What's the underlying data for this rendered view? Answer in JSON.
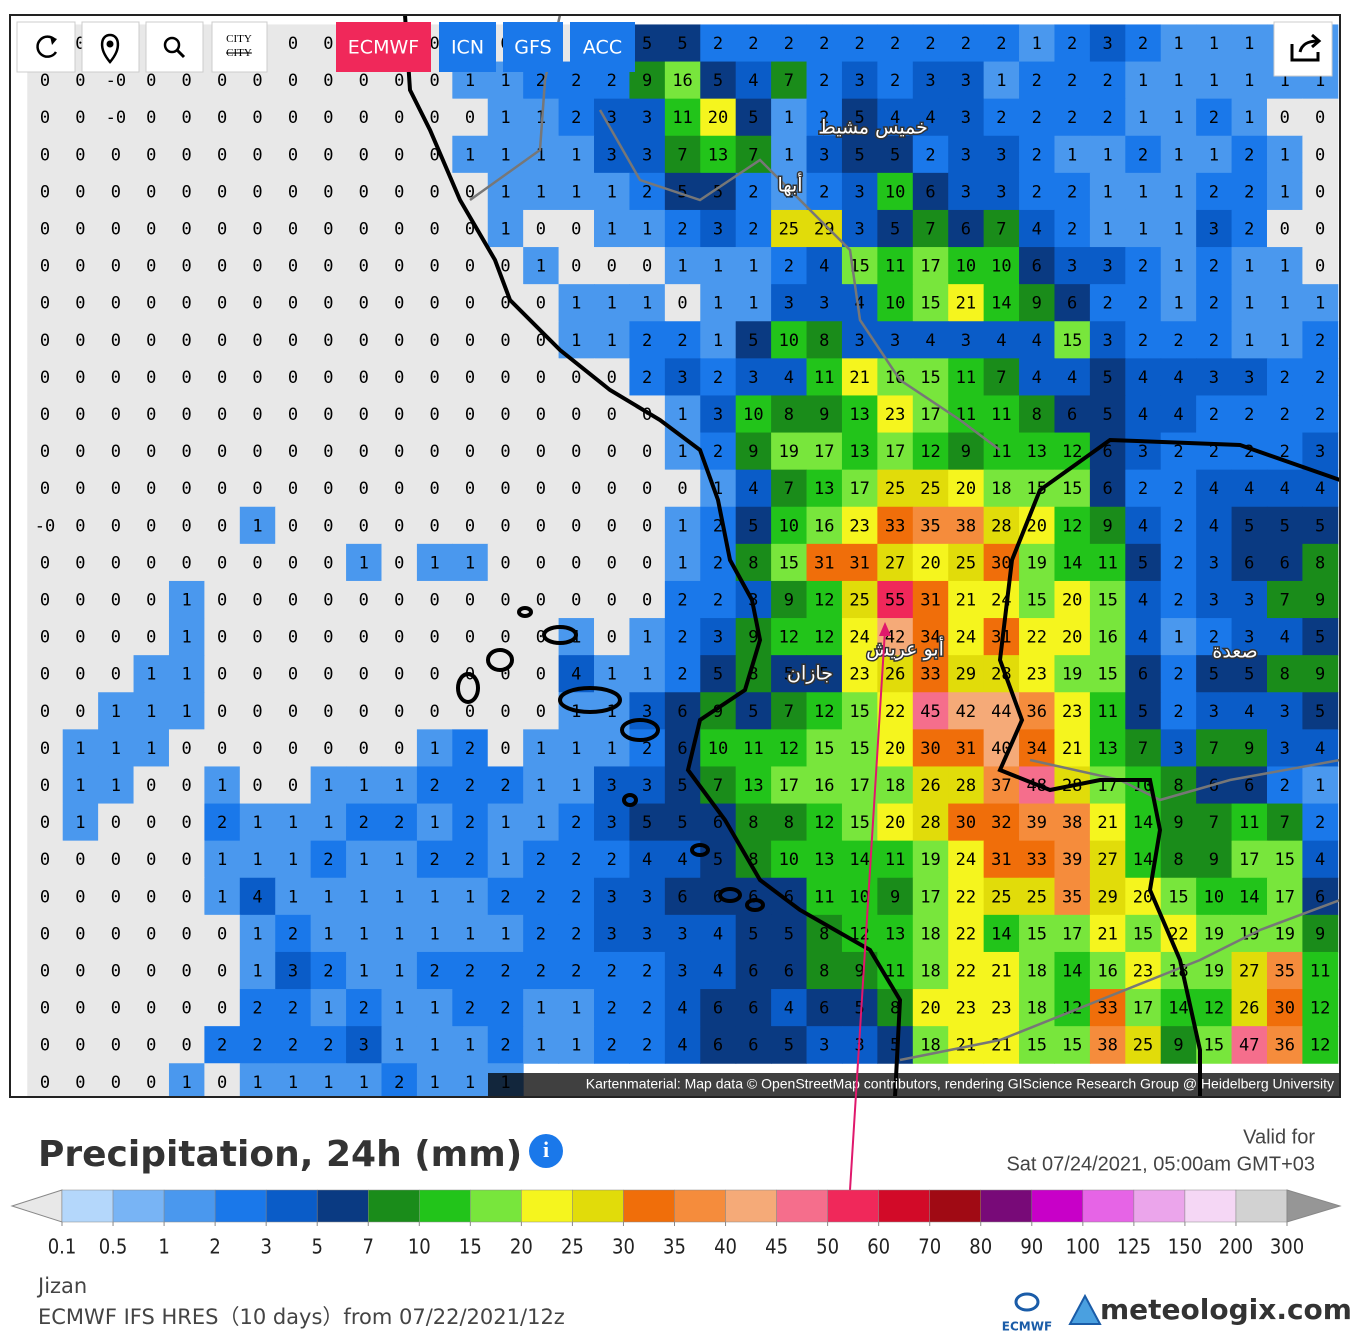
{
  "toolbar": {
    "models": [
      "ECMWF",
      "ICN",
      "GFS",
      "ACC"
    ],
    "city_icon": [
      "CITY",
      "CITY"
    ]
  },
  "map": {
    "grid": [
      [
        0,
        0,
        0,
        0,
        0,
        0,
        0,
        0,
        0,
        0,
        0,
        0,
        0,
        0,
        0,
        0,
        0,
        5,
        5,
        2,
        2,
        2,
        2,
        2,
        2,
        2,
        2,
        2,
        1,
        2,
        3,
        2,
        1,
        1,
        1,
        1,
        1
      ],
      [
        0,
        0,
        "-0",
        0,
        0,
        0,
        0,
        0,
        0,
        0,
        0,
        0,
        1,
        1,
        2,
        2,
        2,
        9,
        16,
        5,
        4,
        7,
        2,
        3,
        2,
        3,
        3,
        1,
        2,
        2,
        2,
        1,
        1,
        1,
        1,
        1,
        1
      ],
      [
        0,
        0,
        "-0",
        0,
        0,
        0,
        0,
        0,
        0,
        0,
        0,
        0,
        0,
        1,
        1,
        2,
        3,
        3,
        11,
        20,
        5,
        1,
        2,
        5,
        4,
        4,
        3,
        2,
        2,
        2,
        2,
        1,
        1,
        2,
        1,
        0,
        0
      ],
      [
        0,
        0,
        0,
        0,
        0,
        0,
        0,
        0,
        0,
        0,
        0,
        0,
        1,
        1,
        1,
        1,
        3,
        3,
        7,
        13,
        7,
        1,
        3,
        5,
        5,
        2,
        3,
        3,
        2,
        1,
        1,
        2,
        1,
        1,
        2,
        1,
        0
      ],
      [
        0,
        0,
        0,
        0,
        0,
        0,
        0,
        0,
        0,
        0,
        0,
        0,
        0,
        1,
        1,
        1,
        1,
        2,
        5,
        5,
        2,
        1,
        2,
        3,
        10,
        6,
        3,
        3,
        2,
        2,
        1,
        1,
        1,
        2,
        2,
        1,
        0
      ],
      [
        0,
        0,
        0,
        0,
        0,
        0,
        0,
        0,
        0,
        0,
        0,
        0,
        0,
        1,
        0,
        0,
        1,
        1,
        2,
        3,
        2,
        25,
        29,
        3,
        5,
        7,
        6,
        7,
        4,
        2,
        1,
        1,
        1,
        3,
        2,
        0,
        0
      ],
      [
        0,
        0,
        0,
        0,
        0,
        0,
        0,
        0,
        0,
        0,
        0,
        0,
        0,
        0,
        1,
        0,
        0,
        0,
        1,
        1,
        1,
        2,
        4,
        15,
        11,
        17,
        10,
        10,
        6,
        3,
        3,
        2,
        1,
        2,
        1,
        1,
        0
      ],
      [
        0,
        0,
        0,
        0,
        0,
        0,
        0,
        0,
        0,
        0,
        0,
        0,
        0,
        0,
        0,
        1,
        1,
        1,
        0,
        1,
        1,
        3,
        3,
        4,
        10,
        15,
        21,
        14,
        9,
        6,
        2,
        2,
        1,
        2,
        1,
        1,
        1
      ],
      [
        0,
        0,
        0,
        0,
        0,
        0,
        0,
        0,
        0,
        0,
        0,
        0,
        0,
        0,
        0,
        1,
        1,
        2,
        2,
        1,
        5,
        10,
        8,
        3,
        3,
        4,
        3,
        4,
        4,
        15,
        3,
        2,
        2,
        2,
        1,
        1,
        2
      ],
      [
        0,
        0,
        0,
        0,
        0,
        0,
        0,
        0,
        0,
        0,
        0,
        0,
        0,
        0,
        0,
        0,
        0,
        2,
        3,
        2,
        3,
        4,
        11,
        21,
        16,
        15,
        11,
        7,
        4,
        4,
        5,
        4,
        4,
        3,
        3,
        2,
        2
      ],
      [
        0,
        0,
        0,
        0,
        0,
        0,
        0,
        0,
        0,
        0,
        0,
        0,
        0,
        0,
        0,
        0,
        0,
        0,
        1,
        3,
        10,
        8,
        9,
        13,
        23,
        17,
        11,
        11,
        8,
        6,
        5,
        4,
        4,
        2,
        2,
        2,
        2
      ],
      [
        0,
        0,
        0,
        0,
        0,
        0,
        0,
        0,
        0,
        0,
        0,
        0,
        0,
        0,
        0,
        0,
        0,
        0,
        1,
        2,
        9,
        19,
        17,
        13,
        17,
        12,
        9,
        11,
        13,
        12,
        6,
        3,
        2,
        2,
        2,
        2,
        3
      ],
      [
        0,
        0,
        0,
        0,
        0,
        0,
        0,
        0,
        0,
        0,
        0,
        0,
        0,
        0,
        0,
        0,
        0,
        0,
        0,
        1,
        4,
        7,
        13,
        17,
        25,
        25,
        20,
        18,
        15,
        15,
        6,
        2,
        2,
        4,
        4,
        4,
        4
      ],
      [
        "-0",
        0,
        0,
        0,
        0,
        0,
        1,
        0,
        0,
        0,
        0,
        0,
        0,
        0,
        0,
        0,
        0,
        0,
        1,
        2,
        5,
        10,
        16,
        23,
        33,
        35,
        38,
        28,
        20,
        12,
        9,
        4,
        2,
        4,
        5,
        5,
        5
      ],
      [
        0,
        0,
        0,
        0,
        0,
        0,
        0,
        0,
        0,
        1,
        0,
        1,
        1,
        0,
        0,
        0,
        0,
        0,
        1,
        2,
        8,
        15,
        31,
        31,
        27,
        20,
        25,
        30,
        19,
        14,
        11,
        5,
        2,
        3,
        6,
        6,
        8
      ],
      [
        0,
        0,
        0,
        0,
        1,
        0,
        0,
        0,
        0,
        0,
        0,
        0,
        0,
        0,
        0,
        0,
        0,
        0,
        2,
        2,
        3,
        9,
        12,
        25,
        55,
        31,
        21,
        24,
        15,
        20,
        15,
        4,
        2,
        3,
        3,
        7,
        9
      ],
      [
        0,
        0,
        0,
        0,
        1,
        0,
        0,
        0,
        0,
        0,
        0,
        0,
        0,
        0,
        0,
        1,
        0,
        1,
        2,
        3,
        9,
        12,
        12,
        24,
        42,
        34,
        24,
        31,
        22,
        20,
        16,
        4,
        1,
        2,
        3,
        4,
        5
      ],
      [
        0,
        0,
        0,
        1,
        1,
        0,
        0,
        0,
        0,
        0,
        0,
        0,
        0,
        0,
        0,
        4,
        1,
        1,
        2,
        5,
        8,
        5,
        5,
        23,
        26,
        33,
        29,
        28,
        23,
        19,
        15,
        6,
        2,
        5,
        5,
        8,
        9
      ],
      [
        0,
        0,
        1,
        1,
        1,
        0,
        0,
        0,
        0,
        0,
        0,
        0,
        0,
        0,
        0,
        1,
        1,
        3,
        6,
        9,
        5,
        7,
        12,
        15,
        22,
        45,
        42,
        44,
        36,
        23,
        11,
        5,
        2,
        3,
        4,
        3,
        5
      ],
      [
        0,
        1,
        1,
        1,
        0,
        0,
        0,
        0,
        0,
        0,
        0,
        1,
        2,
        0,
        1,
        1,
        1,
        2,
        6,
        10,
        11,
        12,
        15,
        15,
        20,
        30,
        31,
        40,
        34,
        21,
        13,
        7,
        3,
        7,
        9,
        3,
        4
      ],
      [
        0,
        1,
        1,
        0,
        0,
        1,
        0,
        0,
        1,
        1,
        1,
        2,
        2,
        2,
        1,
        1,
        3,
        3,
        5,
        7,
        13,
        17,
        16,
        17,
        18,
        26,
        28,
        37,
        48,
        28,
        17,
        10,
        8,
        6,
        6,
        2,
        1
      ],
      [
        0,
        1,
        0,
        0,
        0,
        2,
        1,
        1,
        1,
        2,
        2,
        1,
        2,
        1,
        1,
        2,
        3,
        5,
        5,
        6,
        8,
        8,
        12,
        15,
        20,
        28,
        30,
        32,
        39,
        38,
        21,
        14,
        9,
        7,
        11,
        7,
        2
      ],
      [
        0,
        0,
        0,
        0,
        0,
        1,
        1,
        1,
        2,
        1,
        1,
        2,
        2,
        1,
        2,
        2,
        2,
        4,
        4,
        5,
        8,
        10,
        13,
        14,
        11,
        19,
        24,
        31,
        33,
        39,
        27,
        14,
        8,
        9,
        17,
        15,
        4
      ],
      [
        0,
        0,
        0,
        0,
        0,
        1,
        4,
        1,
        1,
        1,
        1,
        1,
        1,
        2,
        2,
        2,
        3,
        3,
        6,
        6,
        6,
        6,
        11,
        10,
        9,
        17,
        22,
        25,
        25,
        35,
        29,
        20,
        15,
        10,
        14,
        17,
        6
      ],
      [
        0,
        0,
        0,
        0,
        0,
        0,
        1,
        2,
        1,
        1,
        1,
        1,
        1,
        1,
        2,
        2,
        3,
        3,
        3,
        4,
        5,
        5,
        8,
        12,
        13,
        18,
        22,
        14,
        15,
        17,
        21,
        15,
        22,
        19,
        19,
        19,
        9
      ],
      [
        0,
        0,
        0,
        0,
        0,
        0,
        1,
        3,
        2,
        1,
        1,
        2,
        2,
        2,
        2,
        2,
        2,
        2,
        3,
        4,
        6,
        6,
        8,
        9,
        11,
        18,
        22,
        21,
        18,
        14,
        16,
        23,
        18,
        19,
        27,
        35,
        11
      ],
      [
        0,
        0,
        0,
        0,
        0,
        0,
        2,
        2,
        1,
        2,
        1,
        1,
        2,
        2,
        1,
        1,
        2,
        2,
        4,
        6,
        6,
        4,
        6,
        5,
        8,
        20,
        23,
        23,
        18,
        12,
        33,
        17,
        14,
        12,
        26,
        30,
        12
      ],
      [
        0,
        0,
        0,
        0,
        0,
        2,
        2,
        2,
        2,
        3,
        1,
        1,
        1,
        2,
        1,
        1,
        2,
        2,
        4,
        6,
        6,
        5,
        3,
        3,
        5,
        18,
        21,
        21,
        15,
        15,
        38,
        25,
        9,
        15,
        47,
        36,
        12
      ],
      [
        0,
        0,
        0,
        0,
        1,
        0,
        1,
        1,
        1,
        1,
        2,
        1,
        1,
        1
      ]
    ],
    "places": [
      "خميس مشيط",
      "أبها",
      "أبو عريش",
      "جازان",
      "صعدة"
    ],
    "attribution": "Kartenmaterial: Map data © OpenStreetMap contributors, rendering GIScience Research Group @ Heidelberg University"
  },
  "header": {
    "title": "Precipitation, 24h (mm)",
    "valid_label": "Valid for",
    "valid_time": "Sat 07/24/2021, 05:00am GMT+03"
  },
  "legend": {
    "ticks": [
      0.1,
      0.5,
      1,
      2,
      3,
      5,
      7,
      10,
      15,
      20,
      25,
      30,
      35,
      40,
      45,
      50,
      60,
      70,
      80,
      90,
      100,
      125,
      150,
      200,
      300
    ],
    "colors": [
      "#b4d7fb",
      "#78b4f5",
      "#4a98ee",
      "#1a78ea",
      "#0a5cc8",
      "#0a3a82",
      "#1a8c1a",
      "#22c41a",
      "#78e63c",
      "#f5f51e",
      "#e1dc0a",
      "#f06e0a",
      "#f58c3c",
      "#f5aa78",
      "#f56e8c",
      "#f0285a",
      "#d20a28",
      "#a00a14",
      "#780a78",
      "#c800c8",
      "#e664e6",
      "#eba5eb",
      "#f5d7f5",
      "#d2d2d2"
    ],
    "low_color": "#e8e8e8",
    "high_color": "#969696"
  },
  "footer": {
    "location": "Jizan",
    "model": "ECMWF IFS HRES（10 days）from 07/22/2021/12z",
    "logo_small": "ECMWF",
    "logo": "meteologix.com"
  }
}
